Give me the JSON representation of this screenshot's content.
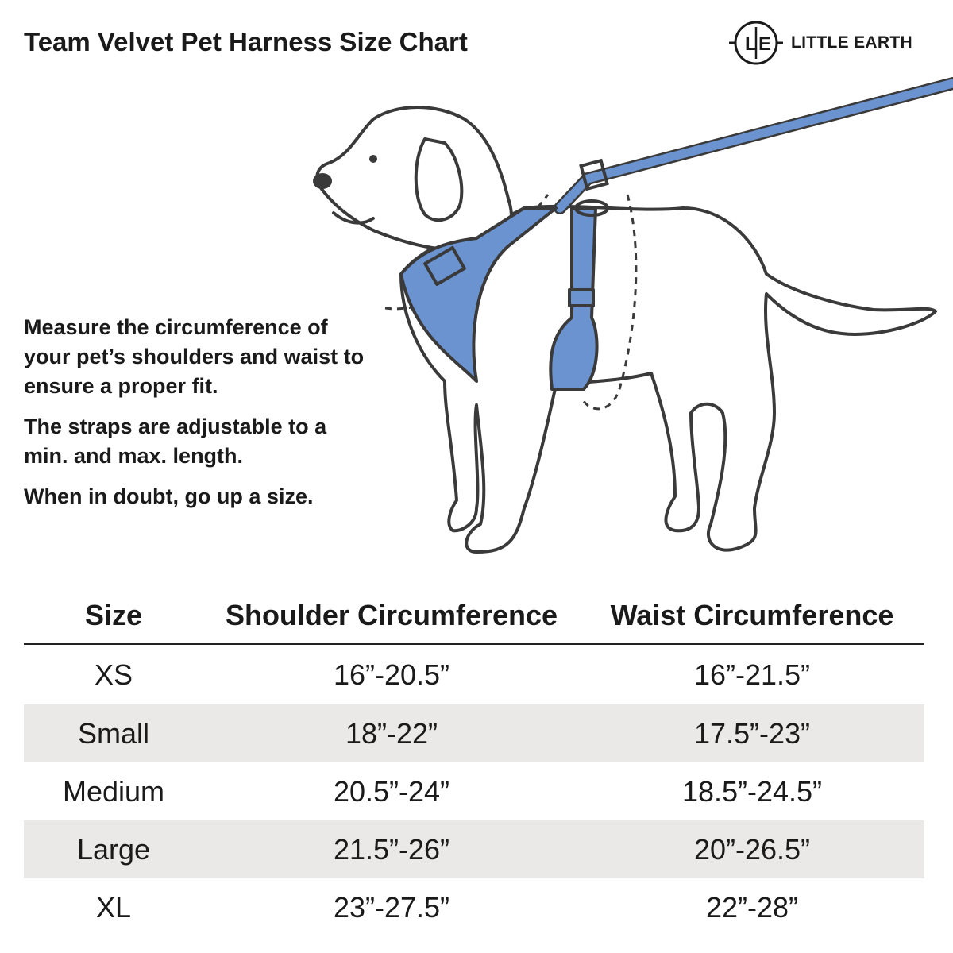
{
  "title": "Team Velvet Pet Harness Size Chart",
  "logo": {
    "mark": "L|E",
    "text": "LITTLE EARTH"
  },
  "notes": [
    "Measure the circumference of your pet’s shoulders and waist to ensure a proper fit.",
    "The straps are adjustable to a min. and max. length.",
    "When in doubt, go up a size."
  ],
  "colors": {
    "harness": "#6b93d0",
    "stripe": "#ebe9e7",
    "outline": "#3a3a3a"
  },
  "table": {
    "headers": [
      "Size",
      "Shoulder Circumference",
      "Waist Circumference"
    ],
    "rows": [
      [
        "XS",
        "16”-20.5”",
        "16”-21.5”"
      ],
      [
        "Small",
        "18”-22”",
        "17.5”-23”"
      ],
      [
        "Medium",
        "20.5”-24”",
        "18.5”-24.5”"
      ],
      [
        "Large",
        "21.5”-26”",
        "20”-26.5”"
      ],
      [
        "XL",
        "23”-27.5”",
        "22”-28”"
      ]
    ]
  }
}
